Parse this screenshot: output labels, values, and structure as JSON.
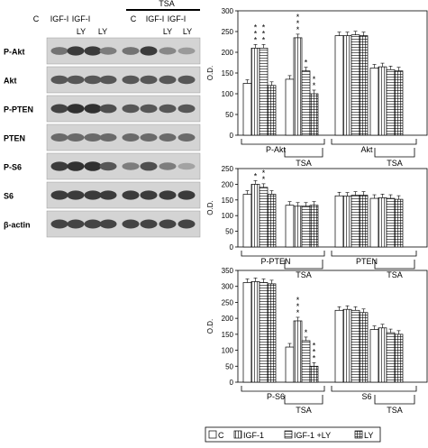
{
  "blot": {
    "tsa_label": "TSA",
    "lane_labels_row1": [
      "C",
      "IGF-I",
      "IGF-I",
      "C",
      "IGF-I",
      "IGF-I"
    ],
    "lane_labels_row2": [
      "LY",
      "LY",
      "LY",
      "LY"
    ],
    "bands": [
      {
        "label": "P-Akt",
        "intensities": [
          0.55,
          0.85,
          0.85,
          0.5,
          0.55,
          0.85,
          0.45,
          0.35
        ]
      },
      {
        "label": "Akt",
        "intensities": [
          0.7,
          0.7,
          0.7,
          0.7,
          0.7,
          0.7,
          0.7,
          0.7
        ]
      },
      {
        "label": "P-PTEN",
        "intensities": [
          0.8,
          0.9,
          0.9,
          0.75,
          0.7,
          0.7,
          0.7,
          0.7
        ]
      },
      {
        "label": "PTEN",
        "intensities": [
          0.6,
          0.6,
          0.6,
          0.6,
          0.6,
          0.6,
          0.6,
          0.6
        ]
      },
      {
        "label": "P-S6",
        "intensities": [
          0.85,
          0.9,
          0.9,
          0.7,
          0.5,
          0.75,
          0.5,
          0.3
        ]
      },
      {
        "label": "S6",
        "intensities": [
          0.85,
          0.85,
          0.85,
          0.85,
          0.85,
          0.85,
          0.85,
          0.85
        ]
      },
      {
        "label": "β-actin",
        "intensities": [
          0.8,
          0.8,
          0.8,
          0.8,
          0.8,
          0.8,
          0.8,
          0.8
        ]
      }
    ]
  },
  "chart_data": [
    {
      "type": "bar",
      "ylabel": "O.D.",
      "ylim": [
        0,
        300
      ],
      "yticks": [
        0,
        50,
        100,
        150,
        200,
        250,
        300
      ],
      "groups": [
        "P-Akt",
        "Akt"
      ],
      "subgroup_label": "TSA",
      "series": [
        {
          "name": "C",
          "values": [
            125,
            135,
            240,
            162
          ]
        },
        {
          "name": "IGF-1",
          "values": [
            210,
            235,
            240,
            165
          ]
        },
        {
          "name": "IGF-1 +LY",
          "values": [
            210,
            155,
            242,
            158
          ]
        },
        {
          "name": "LY",
          "values": [
            120,
            100,
            240,
            155
          ]
        }
      ],
      "significance": [
        {
          "cluster": 0,
          "series": 1,
          "stars": "***"
        },
        {
          "cluster": 0,
          "series": 2,
          "stars": "***"
        },
        {
          "cluster": 1,
          "series": 1,
          "stars": "***"
        },
        {
          "cluster": 1,
          "series": 2,
          "stars": "*"
        },
        {
          "cluster": 1,
          "series": 3,
          "stars": "**"
        }
      ]
    },
    {
      "type": "bar",
      "ylabel": "O.D.",
      "ylim": [
        0,
        250
      ],
      "yticks": [
        0,
        50,
        100,
        150,
        200,
        250
      ],
      "groups": [
        "P-PTEN",
        "PTEN"
      ],
      "subgroup_label": "TSA",
      "series": [
        {
          "name": "C",
          "values": [
            168,
            133,
            163,
            155
          ]
        },
        {
          "name": "IGF-1",
          "values": [
            200,
            130,
            162,
            157
          ]
        },
        {
          "name": "IGF-1 +LY",
          "values": [
            190,
            130,
            165,
            155
          ]
        },
        {
          "name": "LY",
          "values": [
            168,
            133,
            165,
            152
          ]
        }
      ],
      "significance": [
        {
          "cluster": 0,
          "series": 1,
          "stars": "*"
        },
        {
          "cluster": 0,
          "series": 2,
          "stars": "**"
        }
      ]
    },
    {
      "type": "bar",
      "ylabel": "O.D.",
      "ylim": [
        0,
        350
      ],
      "yticks": [
        0,
        50,
        100,
        150,
        200,
        250,
        300,
        350
      ],
      "groups": [
        "P-S6",
        "S6"
      ],
      "subgroup_label": "TSA",
      "series": [
        {
          "name": "C",
          "values": [
            312,
            110,
            225,
            165
          ]
        },
        {
          "name": "IGF-1",
          "values": [
            315,
            192,
            228,
            170
          ]
        },
        {
          "name": "IGF-1 +LY",
          "values": [
            312,
            130,
            225,
            155
          ]
        },
        {
          "name": "LY",
          "values": [
            308,
            50,
            218,
            150
          ]
        }
      ],
      "significance": [
        {
          "cluster": 1,
          "series": 1,
          "stars": "***"
        },
        {
          "cluster": 1,
          "series": 2,
          "stars": "*"
        },
        {
          "cluster": 1,
          "series": 3,
          "stars": "***"
        }
      ]
    }
  ],
  "legend": [
    {
      "name": "C"
    },
    {
      "name": "IGF-1"
    },
    {
      "name": "IGF-1 +LY"
    },
    {
      "name": "LY"
    }
  ]
}
